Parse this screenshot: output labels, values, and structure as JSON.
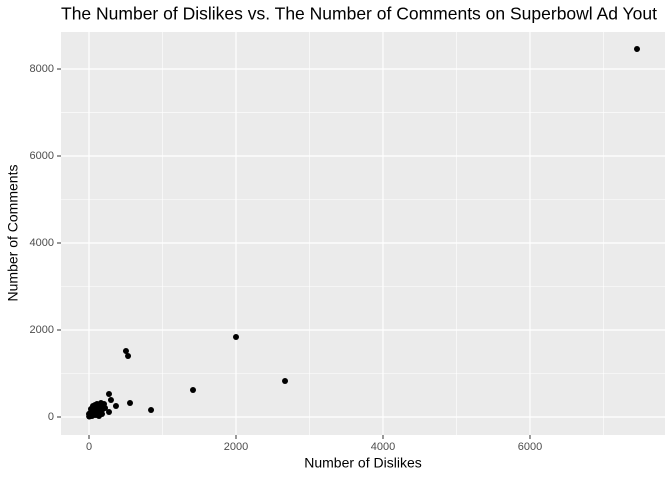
{
  "chart_data": {
    "type": "scatter",
    "title": "The Number of Dislikes vs. The Number of Comments on Superbowl Ad Yout",
    "x_label": "Number of Dislikes",
    "y_label": "Number of Comments",
    "x": [
      7456,
      2000,
      2667,
      1415,
      503,
      531,
      558,
      844,
      272,
      299,
      367,
      272,
      150,
      150,
      163,
      122,
      82,
      54,
      27,
      0,
      5,
      14,
      41,
      68,
      95,
      109,
      136,
      190,
      204,
      82,
      109,
      14,
      2,
      41,
      218,
      177,
      68
    ],
    "y": [
      8460,
      1839,
      828,
      621,
      1517,
      1402,
      322,
      161,
      529,
      391,
      253,
      115,
      115,
      253,
      322,
      230,
      161,
      253,
      184,
      69,
      10,
      92,
      23,
      115,
      46,
      138,
      23,
      184,
      299,
      276,
      299,
      23,
      15,
      92,
      207,
      69,
      46
    ],
    "color": "#000000",
    "xlim": [
      -381,
      7837
    ],
    "ylim": [
      -414,
      8851
    ],
    "xticks": [
      0,
      2000,
      4000,
      6000
    ],
    "yticks": [
      0,
      2000,
      4000,
      6000,
      8000
    ],
    "xminor": [
      1000,
      3000,
      5000,
      7000
    ],
    "yminor": [
      1000,
      3000,
      5000,
      7000
    ],
    "grid": true
  }
}
